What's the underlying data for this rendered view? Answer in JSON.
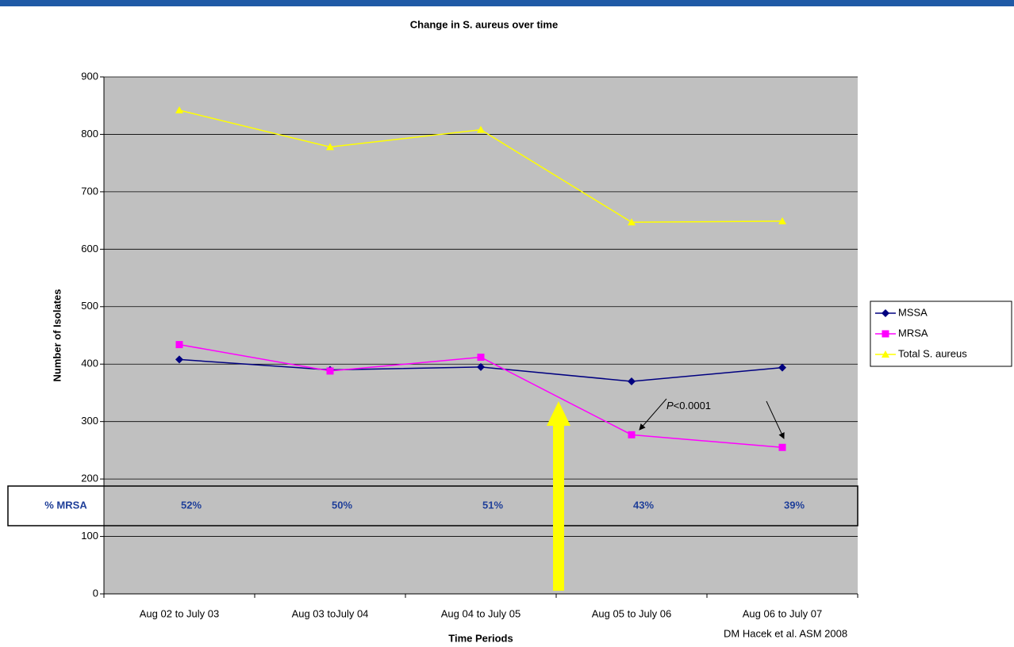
{
  "chart_data": {
    "type": "line",
    "title": "Change in S. aureus over time",
    "x_label": "Time Periods",
    "y_label": "Number of Isolates",
    "categories": [
      "Aug 02 to July 03",
      "Aug 03 toJuly 04",
      "Aug 04 to July 05",
      "Aug 05 to July 06",
      "Aug 06 to July 07"
    ],
    "series": [
      {
        "name": "MSSA",
        "color": "#000080",
        "marker": "diamond",
        "values": [
          408,
          390,
          395,
          370,
          394
        ]
      },
      {
        "name": "MRSA",
        "color": "#ff00ff",
        "marker": "square",
        "values": [
          434,
          388,
          412,
          277,
          255
        ]
      },
      {
        "name": "Total S. aureus",
        "color": "#ffff00",
        "marker": "triangle",
        "values": [
          842,
          778,
          808,
          647,
          649
        ]
      }
    ],
    "ylim": [
      0,
      900
    ],
    "yticks": [
      0,
      100,
      200,
      300,
      400,
      500,
      600,
      700,
      800,
      900
    ],
    "grid": true,
    "legend": "right",
    "percent_row": {
      "label": "% MRSA",
      "values": [
        "52%",
        "50%",
        "51%",
        "43%",
        "39%"
      ]
    },
    "annotation": {
      "italic": "P",
      "text": "<0.0001"
    },
    "citation": "DM Hacek et al. ASM 2008"
  }
}
